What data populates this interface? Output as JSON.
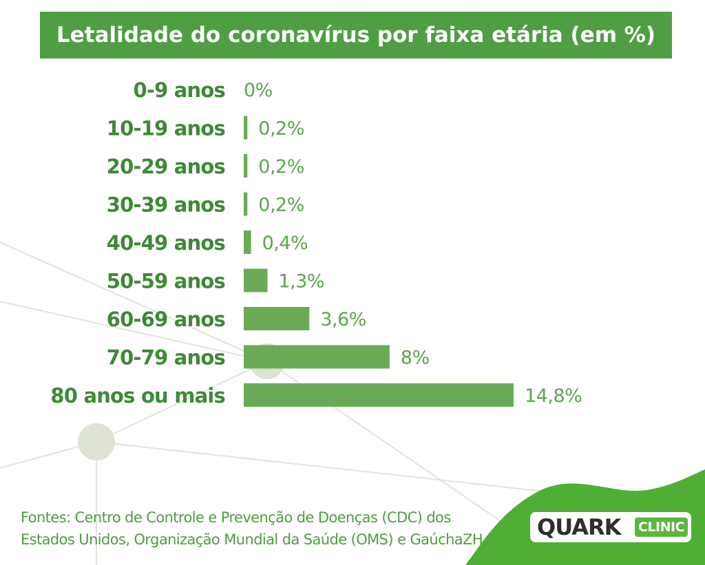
{
  "chart_data": {
    "type": "bar",
    "orientation": "horizontal",
    "title": "Letalidade do coronavírus por faixa etária (em %)",
    "categories": [
      "0-9 anos",
      "10-19 anos",
      "20-29 anos",
      "30-39 anos",
      "40-49 anos",
      "50-59 anos",
      "60-69 anos",
      "70-79 anos",
      "80 anos ou mais"
    ],
    "values": [
      0,
      0.2,
      0.2,
      0.2,
      0.4,
      1.3,
      3.6,
      8,
      14.8
    ],
    "value_labels": [
      "0%",
      "0,2%",
      "0,2%",
      "0,2%",
      "0,4%",
      "1,3%",
      "3,6%",
      "8%",
      "14,8%"
    ],
    "xlim": [
      0,
      14.8
    ],
    "grid": false,
    "colors": {
      "bar": "#6aaa57",
      "category_text": "#3d8a35",
      "value_text": "#5aa54c",
      "title_bg": "#4f9e44"
    }
  },
  "footer": {
    "line1": "Fontes: Centro de Controle e Prevenção de Doenças (CDC) dos",
    "line2": "Estados Unidos, Organização Mundial da Saúde (OMS) e GaúchaZH"
  },
  "logo": {
    "word": "QUARK",
    "badge": "CLINIC"
  },
  "colors": {
    "brand_green": "#4fae35",
    "decor_line": "#dfe6d8",
    "decor_circle": "#dde4d3"
  }
}
